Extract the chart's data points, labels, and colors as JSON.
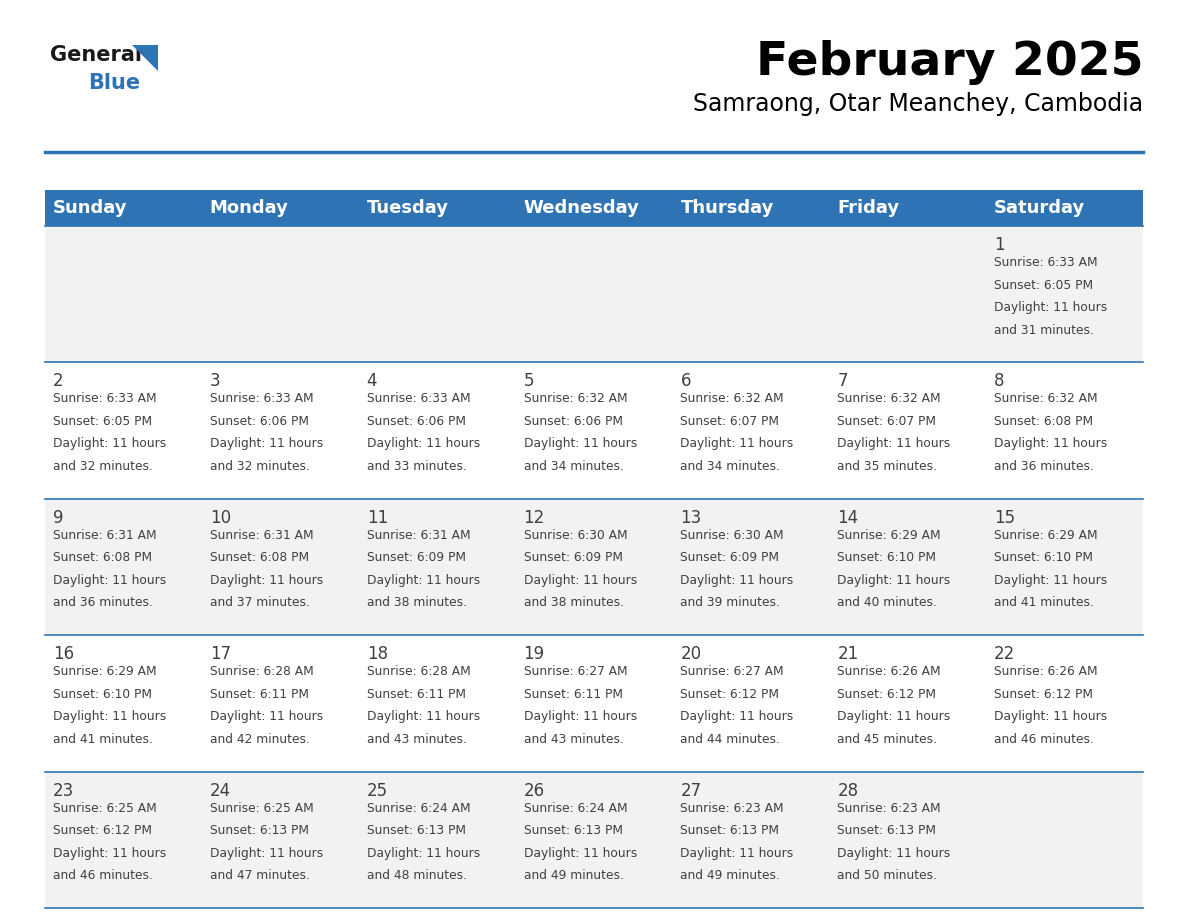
{
  "title": "February 2025",
  "subtitle": "Samraong, Otar Meanchey, Cambodia",
  "header_bg_color": "#2E74B5",
  "header_text_color": "#FFFFFF",
  "row_bg_even": "#F2F2F2",
  "row_bg_odd": "#FFFFFF",
  "days_of_week": [
    "Sunday",
    "Monday",
    "Tuesday",
    "Wednesday",
    "Thursday",
    "Friday",
    "Saturday"
  ],
  "calendar_data": [
    [
      null,
      null,
      null,
      null,
      null,
      null,
      {
        "day": "1",
        "sunrise": "6:33 AM",
        "sunset": "6:05 PM",
        "daylight_h": "11 hours",
        "daylight_m": "and 31 minutes."
      }
    ],
    [
      {
        "day": "2",
        "sunrise": "6:33 AM",
        "sunset": "6:05 PM",
        "daylight_h": "11 hours",
        "daylight_m": "and 32 minutes."
      },
      {
        "day": "3",
        "sunrise": "6:33 AM",
        "sunset": "6:06 PM",
        "daylight_h": "11 hours",
        "daylight_m": "and 32 minutes."
      },
      {
        "day": "4",
        "sunrise": "6:33 AM",
        "sunset": "6:06 PM",
        "daylight_h": "11 hours",
        "daylight_m": "and 33 minutes."
      },
      {
        "day": "5",
        "sunrise": "6:32 AM",
        "sunset": "6:06 PM",
        "daylight_h": "11 hours",
        "daylight_m": "and 34 minutes."
      },
      {
        "day": "6",
        "sunrise": "6:32 AM",
        "sunset": "6:07 PM",
        "daylight_h": "11 hours",
        "daylight_m": "and 34 minutes."
      },
      {
        "day": "7",
        "sunrise": "6:32 AM",
        "sunset": "6:07 PM",
        "daylight_h": "11 hours",
        "daylight_m": "and 35 minutes."
      },
      {
        "day": "8",
        "sunrise": "6:32 AM",
        "sunset": "6:08 PM",
        "daylight_h": "11 hours",
        "daylight_m": "and 36 minutes."
      }
    ],
    [
      {
        "day": "9",
        "sunrise": "6:31 AM",
        "sunset": "6:08 PM",
        "daylight_h": "11 hours",
        "daylight_m": "and 36 minutes."
      },
      {
        "day": "10",
        "sunrise": "6:31 AM",
        "sunset": "6:08 PM",
        "daylight_h": "11 hours",
        "daylight_m": "and 37 minutes."
      },
      {
        "day": "11",
        "sunrise": "6:31 AM",
        "sunset": "6:09 PM",
        "daylight_h": "11 hours",
        "daylight_m": "and 38 minutes."
      },
      {
        "day": "12",
        "sunrise": "6:30 AM",
        "sunset": "6:09 PM",
        "daylight_h": "11 hours",
        "daylight_m": "and 38 minutes."
      },
      {
        "day": "13",
        "sunrise": "6:30 AM",
        "sunset": "6:09 PM",
        "daylight_h": "11 hours",
        "daylight_m": "and 39 minutes."
      },
      {
        "day": "14",
        "sunrise": "6:29 AM",
        "sunset": "6:10 PM",
        "daylight_h": "11 hours",
        "daylight_m": "and 40 minutes."
      },
      {
        "day": "15",
        "sunrise": "6:29 AM",
        "sunset": "6:10 PM",
        "daylight_h": "11 hours",
        "daylight_m": "and 41 minutes."
      }
    ],
    [
      {
        "day": "16",
        "sunrise": "6:29 AM",
        "sunset": "6:10 PM",
        "daylight_h": "11 hours",
        "daylight_m": "and 41 minutes."
      },
      {
        "day": "17",
        "sunrise": "6:28 AM",
        "sunset": "6:11 PM",
        "daylight_h": "11 hours",
        "daylight_m": "and 42 minutes."
      },
      {
        "day": "18",
        "sunrise": "6:28 AM",
        "sunset": "6:11 PM",
        "daylight_h": "11 hours",
        "daylight_m": "and 43 minutes."
      },
      {
        "day": "19",
        "sunrise": "6:27 AM",
        "sunset": "6:11 PM",
        "daylight_h": "11 hours",
        "daylight_m": "and 43 minutes."
      },
      {
        "day": "20",
        "sunrise": "6:27 AM",
        "sunset": "6:12 PM",
        "daylight_h": "11 hours",
        "daylight_m": "and 44 minutes."
      },
      {
        "day": "21",
        "sunrise": "6:26 AM",
        "sunset": "6:12 PM",
        "daylight_h": "11 hours",
        "daylight_m": "and 45 minutes."
      },
      {
        "day": "22",
        "sunrise": "6:26 AM",
        "sunset": "6:12 PM",
        "daylight_h": "11 hours",
        "daylight_m": "and 46 minutes."
      }
    ],
    [
      {
        "day": "23",
        "sunrise": "6:25 AM",
        "sunset": "6:12 PM",
        "daylight_h": "11 hours",
        "daylight_m": "and 46 minutes."
      },
      {
        "day": "24",
        "sunrise": "6:25 AM",
        "sunset": "6:13 PM",
        "daylight_h": "11 hours",
        "daylight_m": "and 47 minutes."
      },
      {
        "day": "25",
        "sunrise": "6:24 AM",
        "sunset": "6:13 PM",
        "daylight_h": "11 hours",
        "daylight_m": "and 48 minutes."
      },
      {
        "day": "26",
        "sunrise": "6:24 AM",
        "sunset": "6:13 PM",
        "daylight_h": "11 hours",
        "daylight_m": "and 49 minutes."
      },
      {
        "day": "27",
        "sunrise": "6:23 AM",
        "sunset": "6:13 PM",
        "daylight_h": "11 hours",
        "daylight_m": "and 49 minutes."
      },
      {
        "day": "28",
        "sunrise": "6:23 AM",
        "sunset": "6:13 PM",
        "daylight_h": "11 hours",
        "daylight_m": "and 50 minutes."
      },
      null
    ]
  ],
  "border_color": "#2E74B5",
  "text_color": "#404040",
  "title_fontsize": 34,
  "subtitle_fontsize": 17,
  "header_fontsize": 13,
  "day_num_fontsize": 12,
  "info_fontsize": 8.8
}
